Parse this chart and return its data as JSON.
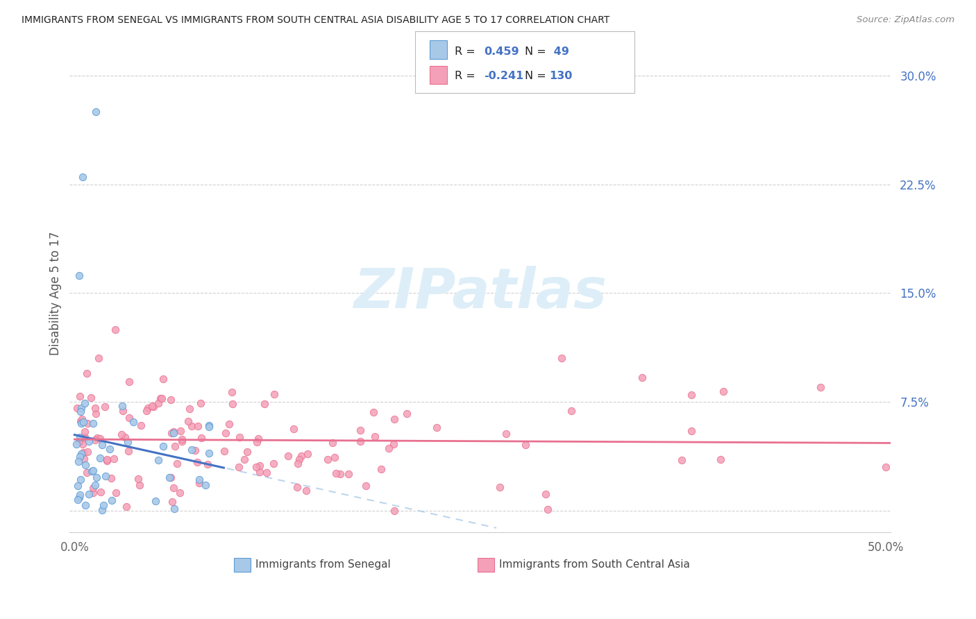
{
  "title": "IMMIGRANTS FROM SENEGAL VS IMMIGRANTS FROM SOUTH CENTRAL ASIA DISABILITY AGE 5 TO 17 CORRELATION CHART",
  "source": "Source: ZipAtlas.com",
  "ylabel_label": "Disability Age 5 to 17",
  "y_tick_values": [
    0.0,
    0.075,
    0.15,
    0.225,
    0.3
  ],
  "y_tick_labels": [
    "",
    "7.5%",
    "15.0%",
    "22.5%",
    "30.0%"
  ],
  "x_tick_values": [
    0.0,
    0.1,
    0.2,
    0.3,
    0.4,
    0.5
  ],
  "x_tick_labels": [
    "0.0%",
    "",
    "",
    "",
    "",
    "50.0%"
  ],
  "xlim": [
    -0.003,
    0.503
  ],
  "ylim": [
    -0.015,
    0.315
  ],
  "color_senegal_fill": "#a8c8e8",
  "color_senegal_edge": "#5b9bd5",
  "color_sca_fill": "#f4a0b8",
  "color_sca_edge": "#e87090",
  "color_sen_trend": "#4472c4",
  "color_sen_trend_dashed": "#a8c8e8",
  "color_sca_trend": "#e87090",
  "background_color": "#ffffff",
  "grid_color": "#d0d0d0",
  "watermark_text": "ZIPatlas",
  "watermark_color": "#ddeef8",
  "legend_r1": "R = ",
  "legend_v1": "0.459",
  "legend_n1_label": "N = ",
  "legend_n1_val": " 49",
  "legend_r2": "R = ",
  "legend_v2": "-0.241",
  "legend_n2_label": "N = ",
  "legend_n2_val": "130",
  "legend_val_color": "#4472c4",
  "legend_text_color": "#222222",
  "bottom_label1": "Immigrants from Senegal",
  "bottom_label2": "Immigrants from South Central Asia",
  "title_color": "#222222",
  "source_color": "#888888",
  "ytick_color": "#4472c4",
  "xtick_color": "#666666",
  "ylabel_color": "#555555"
}
